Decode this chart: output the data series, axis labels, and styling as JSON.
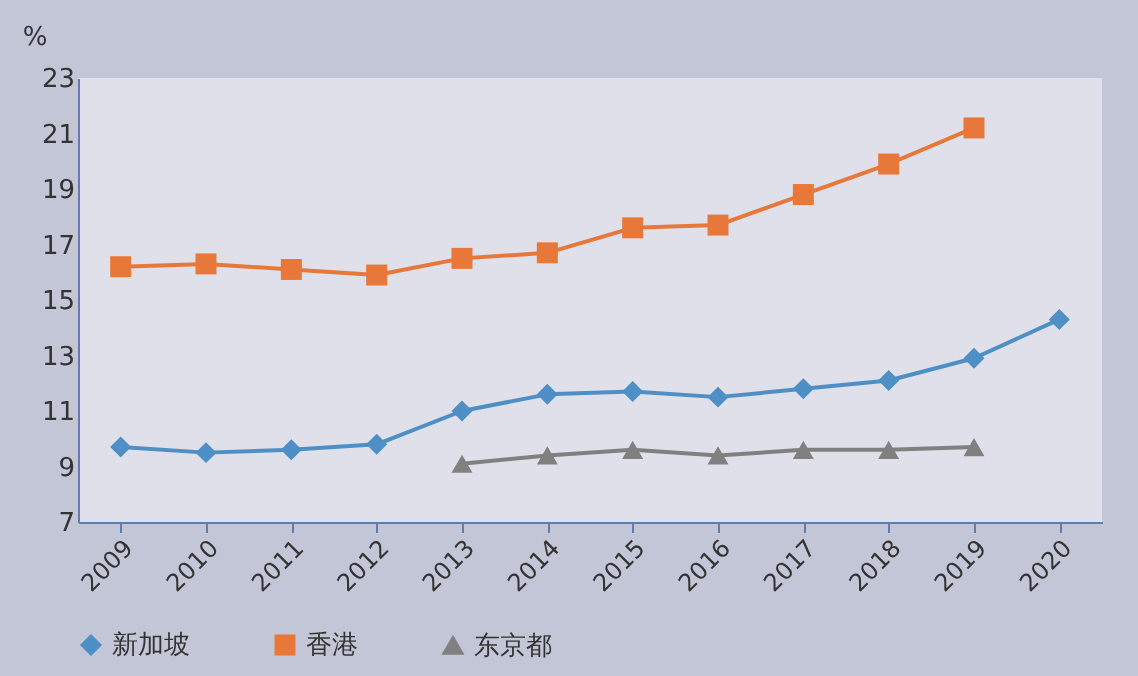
{
  "chart_data": {
    "type": "line",
    "ylabel": "%",
    "categories": [
      "2009",
      "2010",
      "2011",
      "2012",
      "2013",
      "2014",
      "2015",
      "2016",
      "2017",
      "2018",
      "2019",
      "2020"
    ],
    "series": [
      {
        "name": "新加坡",
        "color": "#4e8fc6",
        "marker": "diamond",
        "values": [
          9.7,
          9.5,
          9.6,
          9.8,
          11.0,
          11.6,
          11.7,
          11.5,
          11.8,
          12.1,
          12.9,
          14.3
        ]
      },
      {
        "name": "香港",
        "color": "#e8773a",
        "marker": "square",
        "values": [
          16.2,
          16.3,
          16.1,
          15.9,
          16.5,
          16.7,
          17.6,
          17.7,
          18.8,
          19.9,
          21.2,
          null
        ]
      },
      {
        "name": "东京都",
        "color": "#808080",
        "marker": "triangle",
        "values": [
          null,
          null,
          null,
          null,
          9.1,
          9.4,
          9.6,
          9.4,
          9.6,
          9.6,
          9.7,
          null
        ]
      }
    ],
    "ylim": [
      7,
      23
    ],
    "yticks": [
      7,
      9,
      11,
      13,
      15,
      17,
      19,
      21,
      23
    ],
    "grid": false,
    "legend": "bottom",
    "line_style": "solid"
  }
}
